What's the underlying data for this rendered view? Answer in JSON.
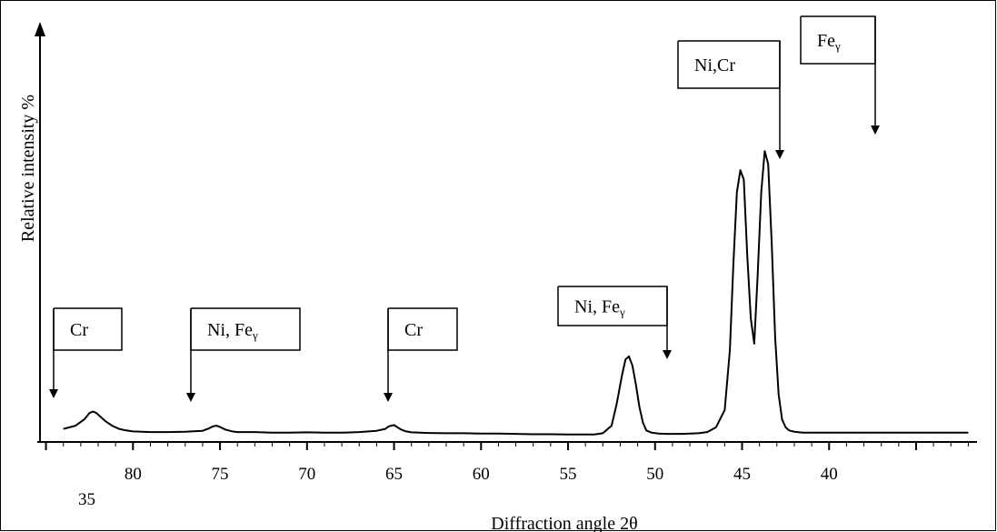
{
  "chart_data": {
    "type": "line",
    "xlabel": "Diffraction angle 2θ",
    "ylabel": "Relative intensity %",
    "x_reversed": true,
    "xlim": [
      85.5,
      31.5
    ],
    "ylim": [
      0,
      100
    ],
    "x_ticks": [
      80,
      75,
      70,
      65,
      60,
      55,
      50,
      45,
      40
    ],
    "x_extra_label": "35",
    "grid": false,
    "legend": "none",
    "series": [
      {
        "x": [
          84.0,
          83.3,
          82.8,
          82.5,
          82.3,
          82.1,
          81.9,
          81.6,
          81.2,
          80.8,
          80.4,
          80.0,
          79.0,
          78.0,
          77.0,
          76.0,
          75.7,
          75.4,
          75.2,
          75.0,
          74.7,
          74.3,
          74.0,
          73.0,
          72.0,
          71.0,
          70.0,
          69.0,
          68.0,
          67.0,
          66.0,
          65.5,
          65.3,
          65.0,
          64.8,
          64.6,
          64.3,
          64.0,
          63.0,
          62.0,
          61.0,
          60.0,
          59.0,
          58.0,
          57.0,
          56.0,
          55.0,
          54.0,
          53.5,
          53.0,
          52.5,
          52.2,
          51.9,
          51.7,
          51.5,
          51.3,
          51.1,
          50.9,
          50.7,
          50.5,
          50.2,
          49.8,
          49.3,
          48.5,
          48.0,
          47.5,
          47.0,
          46.5,
          46.0,
          45.7,
          45.5,
          45.3,
          45.1,
          44.9,
          44.7,
          44.5,
          44.3,
          44.1,
          43.9,
          43.7,
          43.5,
          43.3,
          43.1,
          42.9,
          42.7,
          42.5,
          42.3,
          42.0,
          41.5,
          41.0,
          40.0,
          39.0,
          38.0,
          37.0,
          36.0,
          35.0,
          34.0,
          33.0,
          32.0
        ],
        "y": [
          3,
          4,
          6,
          8,
          8.5,
          8,
          7,
          5.5,
          4,
          3,
          2.5,
          2.2,
          2,
          2,
          2.1,
          2.4,
          3,
          3.8,
          4,
          3.6,
          2.8,
          2.2,
          2,
          2,
          1.8,
          1.8,
          1.9,
          1.8,
          1.8,
          2,
          2.4,
          3,
          3.8,
          4.2,
          3.5,
          2.8,
          2.2,
          1.9,
          1.7,
          1.6,
          1.6,
          1.5,
          1.5,
          1.4,
          1.3,
          1.3,
          1.2,
          1.2,
          1.2,
          1.6,
          4,
          11,
          20,
          25,
          26,
          23,
          17,
          10,
          5,
          2.5,
          1.8,
          1.5,
          1.4,
          1.4,
          1.5,
          1.6,
          2,
          3.5,
          9,
          28,
          55,
          78,
          85,
          82,
          58,
          38,
          30,
          52,
          78,
          91,
          87,
          62,
          32,
          14,
          6,
          3.5,
          2.5,
          2.1,
          1.8,
          1.8,
          1.8,
          1.8,
          1.8,
          1.8,
          1.8,
          1.8,
          1.8,
          1.8,
          1.8
        ]
      }
    ],
    "annotations": [
      {
        "text": "Cr",
        "sub": "",
        "x": 80.5
      },
      {
        "text": "Ni, Fe",
        "sub": "γ",
        "x": 75.3
      },
      {
        "text": "Cr",
        "sub": "",
        "x": 65.3
      },
      {
        "text": "Ni, Fe",
        "sub": "γ",
        "x": 51.2
      },
      {
        "text": "Ni,Cr",
        "sub": "",
        "x": 45.4
      },
      {
        "text": "Fe",
        "sub": "γ",
        "x": 44.1
      }
    ]
  }
}
